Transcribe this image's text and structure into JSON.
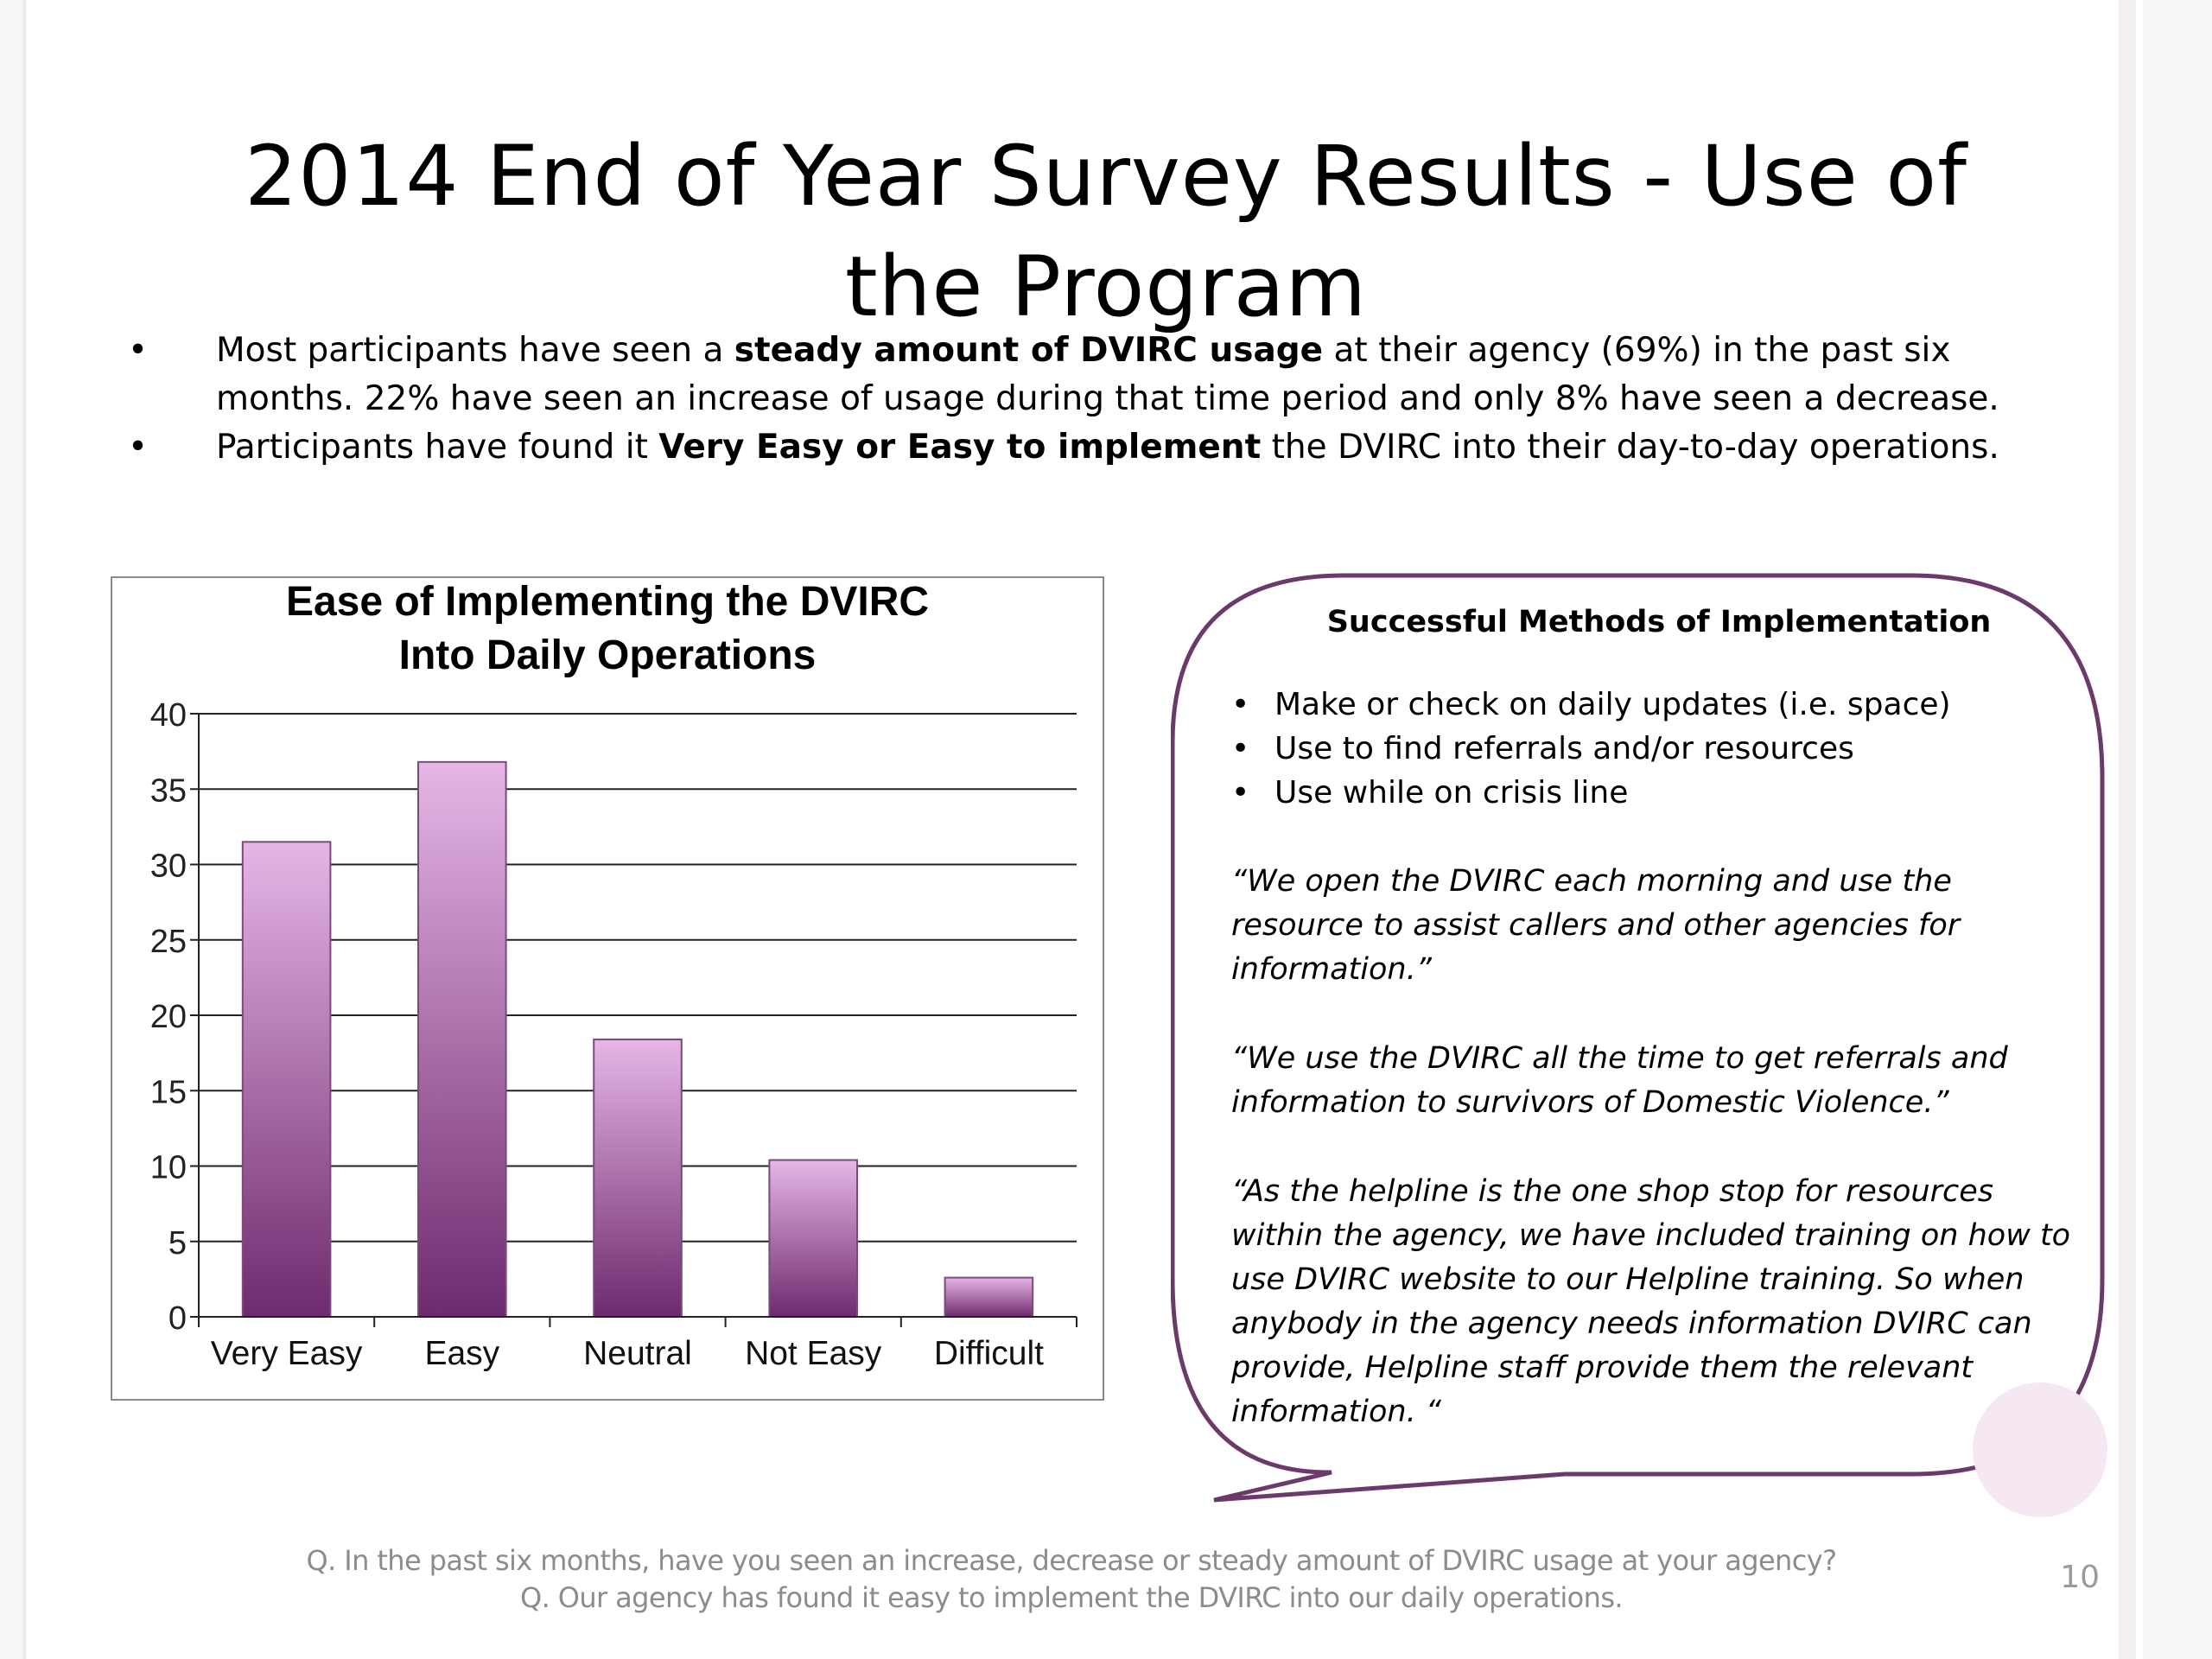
{
  "slide": {
    "title": "2014 End of Year Survey Results - Use of the Program",
    "bullets": [
      {
        "before": "Most participants have seen a ",
        "bold": "steady amount of DVIRC usage",
        "after": " at their agency (69%) in the past six months. 22% have seen an increase of usage during that time period and only 8% have seen a decrease."
      },
      {
        "before": "Participants have found it ",
        "bold": "Very Easy or Easy to implement",
        "after": " the DVIRC into their day-to-day operations."
      }
    ],
    "page_number": "10"
  },
  "chart_data": {
    "type": "bar",
    "title": "Ease of Implementing the DVIRC Into Daily Operations",
    "title_lines": [
      "Ease of Implementing the DVIRC",
      "Into Daily Operations"
    ],
    "categories": [
      "Very Easy",
      "Easy",
      "Neutral",
      "Not Easy",
      "Difficult"
    ],
    "values": [
      31.5,
      36.8,
      18.4,
      10.4,
      2.6
    ],
    "ylim": [
      0,
      40
    ],
    "yticks": [
      0,
      5,
      10,
      15,
      20,
      25,
      30,
      35,
      40
    ],
    "xlabel": "",
    "ylabel": "",
    "grid": true,
    "colors": {
      "bar_top": "#e6b6e6",
      "bar_bottom": "#6e2a6e",
      "bar_border": "#7a4a7a"
    }
  },
  "callout": {
    "heading": "Successful Methods of Implementation",
    "methods": [
      "Make or check on daily updates (i.e. space)",
      "Use to find referrals and/or resources",
      "Use while on crisis line"
    ],
    "quotes": [
      "“We open the DVIRC each morning and use the resource to assist callers and other agencies for information.”",
      "“We use the DVIRC all the time to get referrals and information to survivors of Domestic Violence.”",
      "“As the helpline is the one shop stop for resources within the agency, we have included training on how to use DVIRC website to our Helpline training. So when anybody in the agency needs information DVIRC can provide, Helpline staff provide them the relevant information. “"
    ],
    "border_color": "#6b3a6b"
  },
  "footer": {
    "line1": "Q. In the past six months, have you seen an increase, decrease or steady amount of DVIRC usage at your agency?",
    "line2": "Q. Our agency has found it easy to implement the DVIRC into our daily operations."
  }
}
